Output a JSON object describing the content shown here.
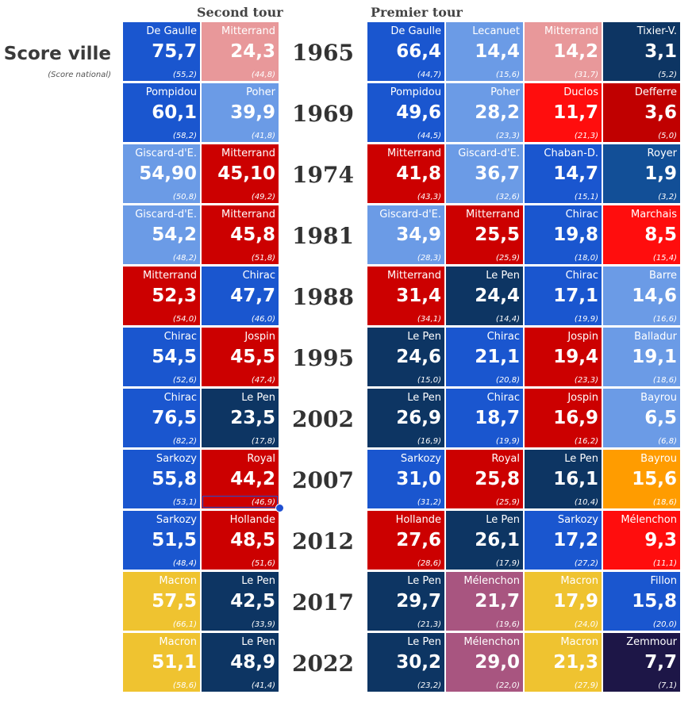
{
  "headers": {
    "second": "Second tour",
    "first": "Premier tour",
    "score_title": "Score ville",
    "score_sub": "(Score national)"
  },
  "colors": {
    "blue": "#1a56cf",
    "lightblue": "#6b9be6",
    "navy": "#0d3563",
    "pink": "#e8989a",
    "red": "#cc0000",
    "brightred": "#ff0d0d",
    "darkred": "#c00000",
    "midblue": "#124f97",
    "orange": "#ff9c00",
    "yellow": "#efc330",
    "purple": "#a85580",
    "darkpurple": "#1d1647"
  },
  "chart_data": {
    "type": "table",
    "title": "Score ville",
    "subtitle": "(Score national)",
    "columns": [
      "Second tour",
      "Premier tour"
    ],
    "rows": [
      {
        "year": "1965",
        "second": [
          {
            "name": "De Gaulle",
            "city": "75,7",
            "national": "(55,2)",
            "color": "blue"
          },
          {
            "name": "Mitterrand",
            "city": "24,3",
            "national": "(44,8)",
            "color": "pink"
          }
        ],
        "first": [
          {
            "name": "De Gaulle",
            "city": "66,4",
            "national": "(44,7)",
            "color": "blue"
          },
          {
            "name": "Lecanuet",
            "city": "14,4",
            "national": "(15,6)",
            "color": "lightblue"
          },
          {
            "name": "Mitterrand",
            "city": "14,2",
            "national": "(31,7)",
            "color": "pink"
          },
          {
            "name": "Tixier-V.",
            "city": "3,1",
            "national": "(5,2)",
            "color": "navy"
          }
        ]
      },
      {
        "year": "1969",
        "second": [
          {
            "name": "Pompidou",
            "city": "60,1",
            "national": "(58,2)",
            "color": "blue"
          },
          {
            "name": "Poher",
            "city": "39,9",
            "national": "(41,8)",
            "color": "lightblue"
          }
        ],
        "first": [
          {
            "name": "Pompidou",
            "city": "49,6",
            "national": "(44,5)",
            "color": "blue"
          },
          {
            "name": "Poher",
            "city": "28,2",
            "national": "(23,3)",
            "color": "lightblue"
          },
          {
            "name": "Duclos",
            "city": "11,7",
            "national": "(21,3)",
            "color": "brightred"
          },
          {
            "name": "Defferre",
            "city": "3,6",
            "national": "(5,0)",
            "color": "darkred"
          }
        ]
      },
      {
        "year": "1974",
        "second": [
          {
            "name": "Giscard-d'E.",
            "city": "54,90",
            "national": "(50,8)",
            "color": "lightblue"
          },
          {
            "name": "Mitterrand",
            "city": "45,10",
            "national": "(49,2)",
            "color": "red"
          }
        ],
        "first": [
          {
            "name": "Mitterrand",
            "city": "41,8",
            "national": "(43,3)",
            "color": "red"
          },
          {
            "name": "Giscard-d'E.",
            "city": "36,7",
            "national": "(32,6)",
            "color": "lightblue"
          },
          {
            "name": "Chaban-D.",
            "city": "14,7",
            "national": "(15,1)",
            "color": "blue"
          },
          {
            "name": "Royer",
            "city": "1,9",
            "national": "(3,2)",
            "color": "midblue"
          }
        ]
      },
      {
        "year": "1981",
        "second": [
          {
            "name": "Giscard-d'E.",
            "city": "54,2",
            "national": "(48,2)",
            "color": "lightblue"
          },
          {
            "name": "Mitterrand",
            "city": "45,8",
            "national": "(51,8)",
            "color": "red"
          }
        ],
        "first": [
          {
            "name": "Giscard-d'E.",
            "city": "34,9",
            "national": "(28,3)",
            "color": "lightblue"
          },
          {
            "name": "Mitterrand",
            "city": "25,5",
            "national": "(25,9)",
            "color": "red"
          },
          {
            "name": "Chirac",
            "city": "19,8",
            "national": "(18,0)",
            "color": "blue"
          },
          {
            "name": "Marchais",
            "city": "8,5",
            "national": "(15,4)",
            "color": "brightred"
          }
        ]
      },
      {
        "year": "1988",
        "second": [
          {
            "name": "Mitterrand",
            "city": "52,3",
            "national": "(54,0)",
            "color": "red"
          },
          {
            "name": "Chirac",
            "city": "47,7",
            "national": "(46,0)",
            "color": "blue"
          }
        ],
        "first": [
          {
            "name": "Mitterrand",
            "city": "31,4",
            "national": "(34,1)",
            "color": "red"
          },
          {
            "name": "Le Pen",
            "city": "24,4",
            "national": "(14,4)",
            "color": "navy"
          },
          {
            "name": "Chirac",
            "city": "17,1",
            "national": "(19,9)",
            "color": "blue"
          },
          {
            "name": "Barre",
            "city": "14,6",
            "national": "(16,6)",
            "color": "lightblue"
          }
        ]
      },
      {
        "year": "1995",
        "second": [
          {
            "name": "Chirac",
            "city": "54,5",
            "national": "(52,6)",
            "color": "blue"
          },
          {
            "name": "Jospin",
            "city": "45,5",
            "national": "(47,4)",
            "color": "red"
          }
        ],
        "first": [
          {
            "name": "Le Pen",
            "city": "24,6",
            "national": "(15,0)",
            "color": "navy"
          },
          {
            "name": "Chirac",
            "city": "21,1",
            "national": "(20,8)",
            "color": "blue"
          },
          {
            "name": "Jospin",
            "city": "19,4",
            "national": "(23,3)",
            "color": "red"
          },
          {
            "name": "Balladur",
            "city": "19,1",
            "national": "(18,6)",
            "color": "lightblue"
          }
        ]
      },
      {
        "year": "2002",
        "second": [
          {
            "name": "Chirac",
            "city": "76,5",
            "national": "(82,2)",
            "color": "blue"
          },
          {
            "name": "Le Pen",
            "city": "23,5",
            "national": "(17,8)",
            "color": "navy"
          }
        ],
        "first": [
          {
            "name": "Le Pen",
            "city": "26,9",
            "national": "(16,9)",
            "color": "navy"
          },
          {
            "name": "Chirac",
            "city": "18,7",
            "national": "(19,9)",
            "color": "blue"
          },
          {
            "name": "Jospin",
            "city": "16,9",
            "national": "(16,2)",
            "color": "red"
          },
          {
            "name": "Bayrou",
            "city": "6,5",
            "national": "(6,8)",
            "color": "lightblue"
          }
        ]
      },
      {
        "year": "2007",
        "second": [
          {
            "name": "Sarkozy",
            "city": "55,8",
            "national": "(53,1)",
            "color": "blue"
          },
          {
            "name": "Royal",
            "city": "44,2",
            "national": "(46,9)",
            "color": "red"
          }
        ],
        "first": [
          {
            "name": "Sarkozy",
            "city": "31,0",
            "national": "(31,2)",
            "color": "blue"
          },
          {
            "name": "Royal",
            "city": "25,8",
            "national": "(25,9)",
            "color": "red"
          },
          {
            "name": "Le Pen",
            "city": "16,1",
            "national": "(10,4)",
            "color": "navy"
          },
          {
            "name": "Bayrou",
            "city": "15,6",
            "national": "(18,6)",
            "color": "orange"
          }
        ]
      },
      {
        "year": "2012",
        "second": [
          {
            "name": "Sarkozy",
            "city": "51,5",
            "national": "(48,4)",
            "color": "blue"
          },
          {
            "name": "Hollande",
            "city": "48,5",
            "national": "(51,6)",
            "color": "red"
          }
        ],
        "first": [
          {
            "name": "Hollande",
            "city": "27,6",
            "national": "(28,6)",
            "color": "red"
          },
          {
            "name": "Le Pen",
            "city": "26,1",
            "national": "(17,9)",
            "color": "navy"
          },
          {
            "name": "Sarkozy",
            "city": "17,2",
            "national": "(27,2)",
            "color": "blue"
          },
          {
            "name": "Mélenchon",
            "city": "9,3",
            "national": "(11,1)",
            "color": "brightred"
          }
        ]
      },
      {
        "year": "2017",
        "second": [
          {
            "name": "Macron",
            "city": "57,5",
            "national": "(66,1)",
            "color": "yellow"
          },
          {
            "name": "Le Pen",
            "city": "42,5",
            "national": "(33,9)",
            "color": "navy"
          }
        ],
        "first": [
          {
            "name": "Le Pen",
            "city": "29,7",
            "national": "(21,3)",
            "color": "navy"
          },
          {
            "name": "Mélenchon",
            "city": "21,7",
            "national": "(19,6)",
            "color": "purple"
          },
          {
            "name": "Macron",
            "city": "17,9",
            "national": "(24,0)",
            "color": "yellow"
          },
          {
            "name": "Fillon",
            "city": "15,8",
            "national": "(20,0)",
            "color": "blue"
          }
        ]
      },
      {
        "year": "2022",
        "second": [
          {
            "name": "Macron",
            "city": "51,1",
            "national": "(58,6)",
            "color": "yellow"
          },
          {
            "name": "Le Pen",
            "city": "48,9",
            "national": "(41,4)",
            "color": "navy"
          }
        ],
        "first": [
          {
            "name": "Le Pen",
            "city": "30,2",
            "national": "(23,2)",
            "color": "navy"
          },
          {
            "name": "Mélenchon",
            "city": "29,0",
            "national": "(22,0)",
            "color": "purple"
          },
          {
            "name": "Macron",
            "city": "21,3",
            "national": "(27,9)",
            "color": "yellow"
          },
          {
            "name": "Zemmour",
            "city": "7,7",
            "national": "(7,1)",
            "color": "darkpurple"
          }
        ]
      }
    ]
  }
}
